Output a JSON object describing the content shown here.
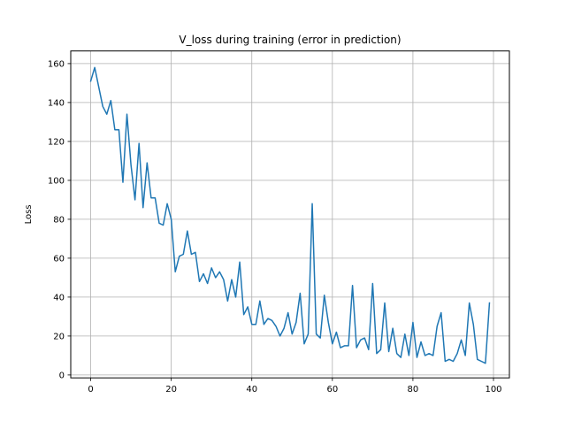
{
  "chart_data": {
    "type": "line",
    "title": "V_loss during training (error in prediction)",
    "xlabel": "",
    "ylabel": "Loss",
    "xlim": [
      -4.95,
      103.95
    ],
    "ylim": [
      -1.5,
      166.5
    ],
    "xticks": [
      0,
      20,
      40,
      60,
      80,
      100
    ],
    "yticks": [
      0,
      20,
      40,
      60,
      80,
      100,
      120,
      140,
      160
    ],
    "grid": true,
    "legend": "none",
    "line_color": "#1f77b4",
    "series": [
      {
        "x": [
          0,
          1,
          2,
          3,
          4,
          5,
          6,
          7,
          8,
          9,
          10,
          11,
          12,
          13,
          14,
          15,
          16,
          17,
          18,
          19,
          20,
          21,
          22,
          23,
          24,
          25,
          26,
          27,
          28,
          29,
          30,
          31,
          32,
          33,
          34,
          35,
          36,
          37,
          38,
          39,
          40,
          41,
          42,
          43,
          44,
          45,
          46,
          47,
          48,
          49,
          50,
          51,
          52,
          53,
          54,
          55,
          56,
          57,
          58,
          59,
          60,
          61,
          62,
          63,
          64,
          65,
          66,
          67,
          68,
          69,
          70,
          71,
          72,
          73,
          74,
          75,
          76,
          77,
          78,
          79,
          80,
          81,
          82,
          83,
          84,
          85,
          86,
          87,
          88,
          89,
          90,
          91,
          92,
          93,
          94,
          95,
          96,
          97,
          98,
          99
        ],
        "values": [
          151,
          158,
          148,
          138,
          134,
          141,
          126,
          126,
          99,
          134,
          108,
          90,
          119,
          86,
          109,
          91,
          91,
          78,
          77,
          88,
          80,
          53,
          61,
          62,
          74,
          62,
          63,
          48,
          52,
          47,
          55,
          50,
          53,
          49,
          38,
          49,
          40,
          58,
          31,
          35,
          26,
          26,
          38,
          26,
          29,
          28,
          25,
          20,
          24,
          32,
          21,
          27,
          42,
          16,
          21,
          88,
          21,
          19,
          41,
          27,
          16,
          22,
          14,
          15,
          15,
          46,
          14,
          18,
          19,
          13,
          47,
          11,
          13,
          37,
          12,
          24,
          11,
          9,
          21,
          10,
          27,
          9,
          17,
          10,
          11,
          10,
          25,
          32,
          7,
          8,
          7,
          11,
          18,
          10,
          37,
          26,
          8,
          7,
          6,
          37
        ]
      }
    ]
  }
}
